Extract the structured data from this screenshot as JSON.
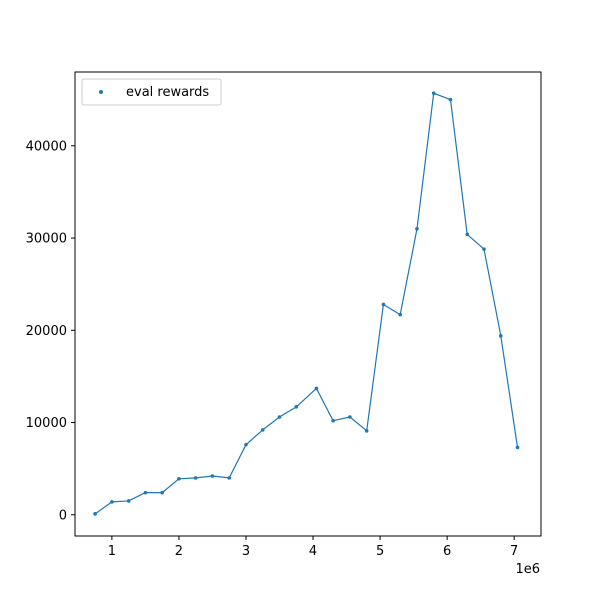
{
  "chart_data": {
    "type": "line",
    "title": "",
    "xlabel": "",
    "ylabel": "",
    "x_offset_label": "1e6",
    "x_scale": 1000000,
    "xlim": [
      0.45,
      7.4
    ],
    "ylim": [
      -2300,
      48000
    ],
    "x_ticks": [
      1,
      2,
      3,
      4,
      5,
      6,
      7
    ],
    "y_ticks": [
      0,
      10000,
      20000,
      30000,
      40000
    ],
    "grid": false,
    "legend": {
      "position": "top-left",
      "entries": [
        "eval rewards"
      ]
    },
    "series": [
      {
        "name": "eval rewards",
        "color": "#1f77b4",
        "x": [
          0.75,
          1.0,
          1.25,
          1.5,
          1.75,
          2.0,
          2.25,
          2.5,
          2.75,
          3.0,
          3.25,
          3.5,
          3.75,
          4.05,
          4.3,
          4.55,
          4.8,
          5.05,
          5.3,
          5.55,
          5.8,
          6.05,
          6.3,
          6.55,
          6.8,
          7.05
        ],
        "y": [
          100,
          1400,
          1500,
          2400,
          2400,
          3900,
          4000,
          4200,
          4000,
          7600,
          9200,
          10600,
          11700,
          13700,
          10200,
          10600,
          9100,
          22800,
          21700,
          31000,
          45700,
          45000,
          30400,
          28800,
          19400,
          7300
        ]
      }
    ]
  }
}
